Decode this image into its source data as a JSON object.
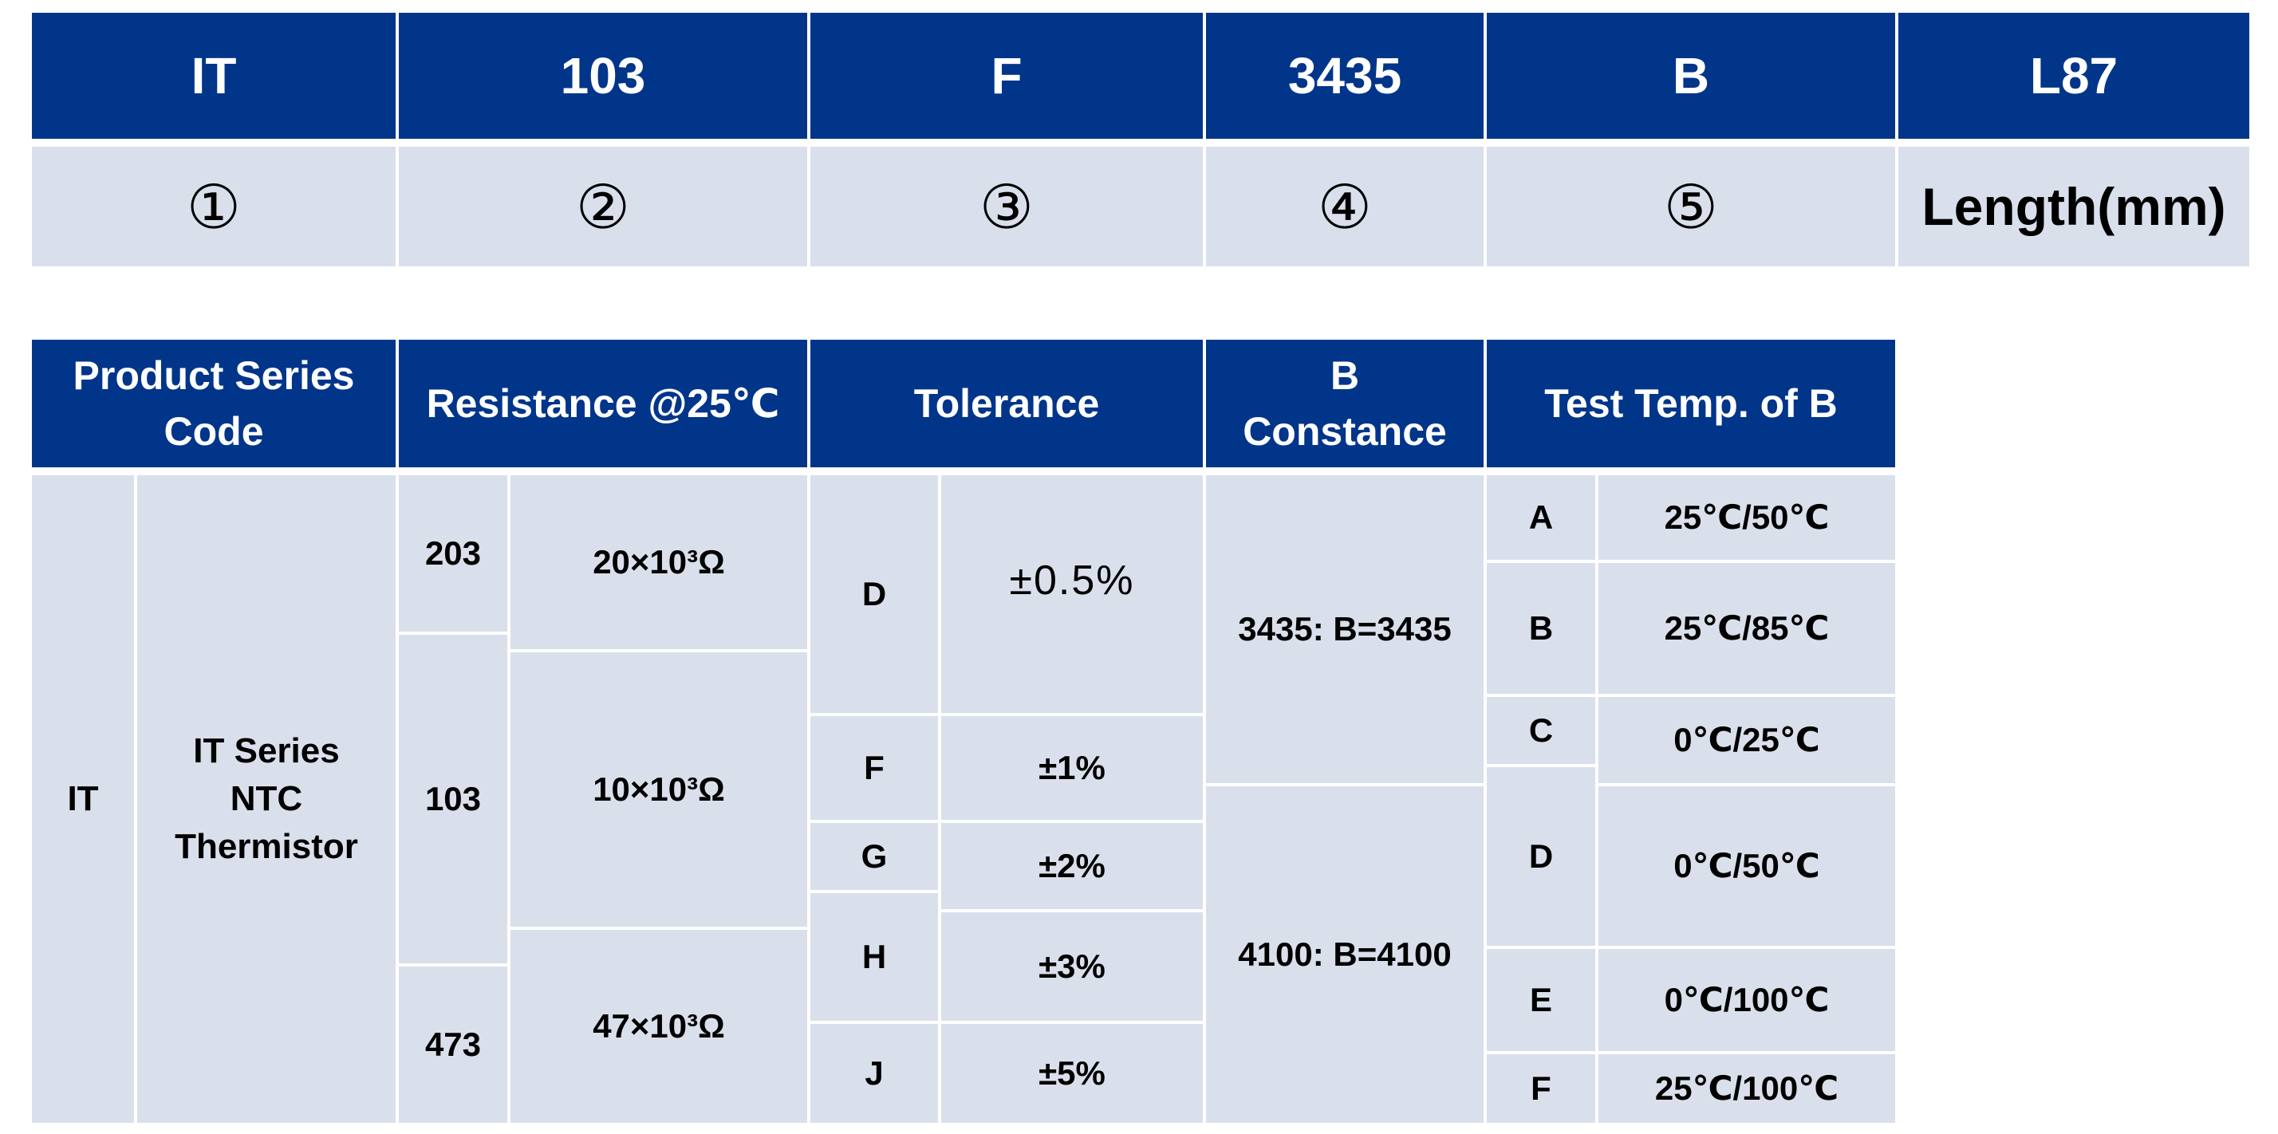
{
  "code_row": {
    "cells": [
      "IT",
      "103",
      "F",
      "3435",
      "B",
      "L87"
    ],
    "legend": [
      "①",
      "②",
      "③",
      "④",
      "⑤",
      "Length(mm)"
    ]
  },
  "table": {
    "headers": {
      "series": "Product Series Code",
      "resistance": "Resistance @25℃",
      "tolerance": "Tolerance",
      "b_constance": "B Constance",
      "test_temp": "Test Temp. of B"
    },
    "series": {
      "code": "IT",
      "description": "IT Series NTC Thermistor"
    },
    "resistance": {
      "codes": [
        "203",
        "103",
        "473"
      ],
      "values": [
        "20×10³Ω",
        "10×10³Ω",
        "47×10³Ω"
      ]
    },
    "tolerance": [
      {
        "code": "D",
        "value": "±0.5%"
      },
      {
        "code": "F",
        "value": "±1%"
      },
      {
        "code": "G",
        "value": "±2%"
      },
      {
        "code": "H",
        "value": "±3%"
      },
      {
        "code": "J",
        "value": "±5%"
      }
    ],
    "b_constance": [
      "3435: B=3435",
      "4100: B=4100"
    ],
    "test_temp": [
      {
        "code": "A",
        "value": "25℃/50℃"
      },
      {
        "code": "B",
        "value": "25℃/85℃"
      },
      {
        "code": "C",
        "value": "0℃/25℃"
      },
      {
        "code": "D",
        "value": "0℃/50℃"
      },
      {
        "code": "E",
        "value": "0℃/100℃"
      },
      {
        "code": "F",
        "value": "25℃/100℃"
      }
    ]
  },
  "colors": {
    "header_bg": "#00358a",
    "body_bg": "#d9e0eb",
    "header_text": "#ffffff",
    "body_text": "#000000"
  }
}
